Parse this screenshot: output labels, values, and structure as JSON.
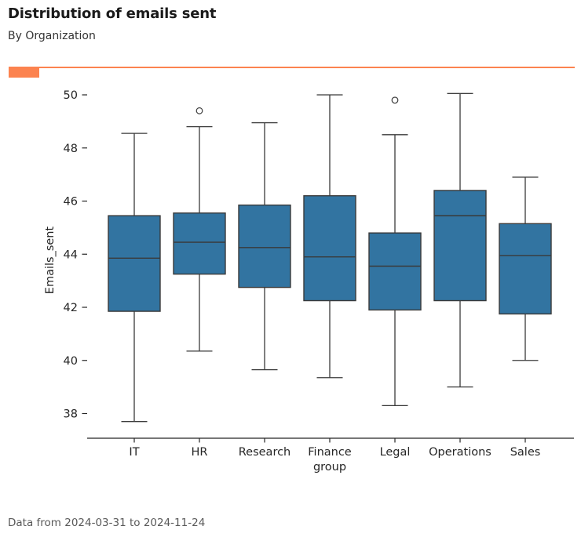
{
  "header": {
    "title": "Distribution of emails sent",
    "subtitle": "By Organization"
  },
  "footer": {
    "note": "Data from 2024-03-31 to 2024-11-24"
  },
  "colors": {
    "accent": "#fc834f",
    "box_fill": "#3274a1",
    "box_edge": "#3a3a3a",
    "axis": "#262626",
    "tick_text": "#262626",
    "footer_text": "#595959"
  },
  "chart_data": {
    "type": "boxplot",
    "title": "Distribution of emails sent",
    "subtitle": "By Organization",
    "xlabel": "group",
    "ylabel": "Emails_sent",
    "categories": [
      "IT",
      "HR",
      "Research",
      "Finance",
      "Legal",
      "Operations",
      "Sales"
    ],
    "yticks": [
      38,
      40,
      42,
      44,
      46,
      48,
      50
    ],
    "ylim": [
      37.2,
      50.6
    ],
    "grid": false,
    "legend": "none",
    "series": [
      {
        "name": "IT",
        "whisker_low": 37.7,
        "q1": 41.85,
        "median": 43.85,
        "q3": 45.45,
        "whisker_high": 48.55,
        "outliers": []
      },
      {
        "name": "HR",
        "whisker_low": 40.35,
        "q1": 43.25,
        "median": 44.45,
        "q3": 45.55,
        "whisker_high": 48.8,
        "outliers": [
          49.4
        ]
      },
      {
        "name": "Research",
        "whisker_low": 39.65,
        "q1": 42.75,
        "median": 44.25,
        "q3": 45.85,
        "whisker_high": 48.95,
        "outliers": []
      },
      {
        "name": "Finance",
        "whisker_low": 39.35,
        "q1": 42.25,
        "median": 43.9,
        "q3": 46.2,
        "whisker_high": 50.0,
        "outliers": []
      },
      {
        "name": "Legal",
        "whisker_low": 38.3,
        "q1": 41.9,
        "median": 43.55,
        "q3": 44.8,
        "whisker_high": 48.5,
        "outliers": [
          49.8
        ]
      },
      {
        "name": "Operations",
        "whisker_low": 39.0,
        "q1": 42.25,
        "median": 45.45,
        "q3": 46.4,
        "whisker_high": 50.05,
        "outliers": []
      },
      {
        "name": "Sales",
        "whisker_low": 40.0,
        "q1": 41.75,
        "median": 43.95,
        "q3": 45.15,
        "whisker_high": 46.9,
        "outliers": []
      }
    ]
  }
}
